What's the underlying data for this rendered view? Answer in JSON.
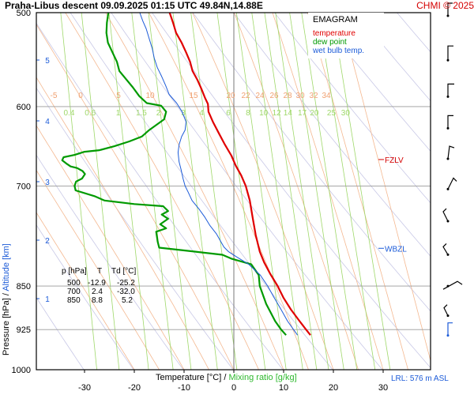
{
  "header": {
    "title": "Praha-Libus   descent   09.09.2025 01:15 UTC   49.84N,14.88E",
    "copyright": "CHMI © 2025"
  },
  "legend": {
    "title": "EMAGRAM",
    "temperature": "temperature",
    "dew_point": "dew point",
    "wet_bulb": "wet bulb temp."
  },
  "axes": {
    "ylabel_pressure": "Pressure [hPa]",
    "ylabel_sep": "  /  ",
    "ylabel_altitude": "Altitude [km]",
    "xlabel_temp": "Temperature [°C]",
    "xlabel_sep": "  /  ",
    "xlabel_mix": "Mixing ratio [g/kg]"
  },
  "table": {
    "headers": [
      "p [hPa]",
      "T",
      "Td [°C]"
    ],
    "rows": [
      [
        "500",
        "-12.9",
        "-25.2"
      ],
      [
        "700",
        "2.4",
        "-32.0"
      ],
      [
        "850",
        "8.8",
        "5.2"
      ]
    ]
  },
  "markers": {
    "fzlv": "FZLV",
    "wbzl": "WBZL"
  },
  "lrl": "LRL: 576 m ASL",
  "colors": {
    "temperature": "#e00000",
    "dew_point": "#009a00",
    "wet_bulb": "#1c5bd8",
    "dry_adiabat": "#c8c8e6",
    "moist_adiabat": "#f4b890",
    "mixing_ratio": "#9fd86a",
    "isobar": "#9a9a9a",
    "isotherm_zero": "#7a7a7a"
  },
  "chart_data": {
    "type": "line",
    "x_axis": {
      "label": "Temperature [°C]",
      "range": [
        -40,
        40
      ],
      "ticks": [
        -30,
        -20,
        -10,
        0,
        10,
        20,
        30
      ]
    },
    "y_axis": {
      "label": "Pressure [hPa]",
      "scale": "log",
      "range": [
        1000,
        500
      ],
      "ticks": [
        500,
        600,
        700,
        850,
        925,
        1000
      ]
    },
    "altitude_ticks_km": [
      1,
      2,
      3,
      4,
      5
    ],
    "mixing_ratio_labels": [
      "0.4",
      "0.6",
      "1",
      "1.5",
      "2",
      "3",
      "4",
      "6",
      "8",
      "10",
      "12",
      "14",
      "17",
      "20",
      "25",
      "30"
    ],
    "moist_adiabat_labels": [
      "-5",
      "0",
      "5",
      "10",
      "15",
      "20",
      "22",
      "24",
      "26",
      "28",
      "30",
      "32",
      "34"
    ],
    "levels": {
      "FZLV_hPa": 665,
      "WBZL_hPa": 790
    },
    "series": [
      {
        "name": "temperature",
        "points": [
          [
            15.4,
            935
          ],
          [
            14.5,
            925
          ],
          [
            13.2,
            910
          ],
          [
            11.5,
            890
          ],
          [
            10.0,
            870
          ],
          [
            8.8,
            850
          ],
          [
            7.3,
            830
          ],
          [
            6.1,
            812
          ],
          [
            5.2,
            795
          ],
          [
            4.4,
            770
          ],
          [
            3.8,
            745
          ],
          [
            3.2,
            720
          ],
          [
            2.4,
            700
          ],
          [
            1.5,
            686
          ],
          [
            0.4,
            673
          ],
          [
            -0.5,
            660
          ],
          [
            -1.8,
            646
          ],
          [
            -3.0,
            632
          ],
          [
            -4.2,
            618
          ],
          [
            -5.1,
            606
          ],
          [
            -5.2,
            597
          ],
          [
            -5.8,
            590
          ],
          [
            -6.5,
            580
          ],
          [
            -7.3,
            570
          ],
          [
            -8.3,
            560
          ],
          [
            -8.8,
            550
          ],
          [
            -9.6,
            540
          ],
          [
            -10.5,
            530
          ],
          [
            -11.6,
            520
          ],
          [
            -12.2,
            510
          ],
          [
            -12.9,
            500
          ]
        ]
      },
      {
        "name": "dew point",
        "points": [
          [
            10.5,
            935
          ],
          [
            9.5,
            925
          ],
          [
            8.3,
            910
          ],
          [
            6.5,
            880
          ],
          [
            5.2,
            850
          ],
          [
            5.0,
            832
          ],
          [
            3.5,
            815
          ],
          [
            -0.5,
            806
          ],
          [
            -2.3,
            800
          ],
          [
            -8.0,
            795
          ],
          [
            -15.0,
            789
          ],
          [
            -15.3,
            780
          ],
          [
            -15.6,
            765
          ],
          [
            -13.6,
            760
          ],
          [
            -14.8,
            754
          ],
          [
            -13.2,
            746
          ],
          [
            -14.5,
            740
          ],
          [
            -13.2,
            735
          ],
          [
            -14.2,
            728
          ],
          [
            -20.0,
            725
          ],
          [
            -26.0,
            720
          ],
          [
            -28.0,
            714
          ],
          [
            -31.8,
            706
          ],
          [
            -32.0,
            700
          ],
          [
            -31.7,
            694
          ],
          [
            -30.5,
            690
          ],
          [
            -29.9,
            684
          ],
          [
            -30.4,
            680
          ],
          [
            -31.5,
            676
          ],
          [
            -32.8,
            674
          ],
          [
            -33.7,
            670
          ],
          [
            -34.5,
            666
          ],
          [
            -34.2,
            662
          ],
          [
            -32.0,
            659
          ],
          [
            -30.0,
            655
          ],
          [
            -27.0,
            653
          ],
          [
            -24.0,
            648
          ],
          [
            -21.0,
            642
          ],
          [
            -18.5,
            636
          ],
          [
            -17.0,
            628
          ],
          [
            -14.0,
            615
          ],
          [
            -13.6,
            606
          ],
          [
            -14.6,
            599
          ],
          [
            -17.5,
            596
          ],
          [
            -19.0,
            588
          ],
          [
            -20.3,
            578
          ],
          [
            -21.5,
            570
          ],
          [
            -23.0,
            560
          ],
          [
            -23.5,
            550
          ],
          [
            -24.4,
            540
          ],
          [
            -25.3,
            530
          ],
          [
            -25.6,
            520
          ],
          [
            -25.5,
            510
          ],
          [
            -25.2,
            500
          ]
        ]
      },
      {
        "name": "wet bulb temp.",
        "points": [
          [
            12.8,
            935
          ],
          [
            12.0,
            925
          ],
          [
            10.8,
            910
          ],
          [
            9.5,
            890
          ],
          [
            8.0,
            868
          ],
          [
            6.8,
            850
          ],
          [
            5.3,
            832
          ],
          [
            3.0,
            815
          ],
          [
            0.5,
            803
          ],
          [
            -1.1,
            795
          ],
          [
            -2.0,
            788
          ],
          [
            -2.6,
            780
          ],
          [
            -3.5,
            768
          ],
          [
            -4.8,
            756
          ],
          [
            -5.8,
            744
          ],
          [
            -7.0,
            732
          ],
          [
            -8.4,
            720
          ],
          [
            -9.2,
            708
          ],
          [
            -9.8,
            700
          ],
          [
            -10.2,
            690
          ],
          [
            -10.6,
            678
          ],
          [
            -11.0,
            668
          ],
          [
            -11.2,
            656
          ],
          [
            -11.0,
            646
          ],
          [
            -10.5,
            636
          ],
          [
            -9.8,
            628
          ],
          [
            -9.6,
            618
          ],
          [
            -10.4,
            606
          ],
          [
            -11.5,
            596
          ],
          [
            -13.0,
            586
          ],
          [
            -13.7,
            576
          ],
          [
            -14.5,
            566
          ],
          [
            -15.4,
            556
          ],
          [
            -16.0,
            546
          ],
          [
            -16.4,
            536
          ],
          [
            -17.0,
            526
          ],
          [
            -17.6,
            516
          ],
          [
            -18.3,
            508
          ],
          [
            -18.9,
            500
          ]
        ]
      }
    ],
    "wind_barbs_hPa": [
      500,
      545,
      585,
      622,
      660,
      700,
      745,
      795,
      845,
      895,
      930
    ]
  }
}
